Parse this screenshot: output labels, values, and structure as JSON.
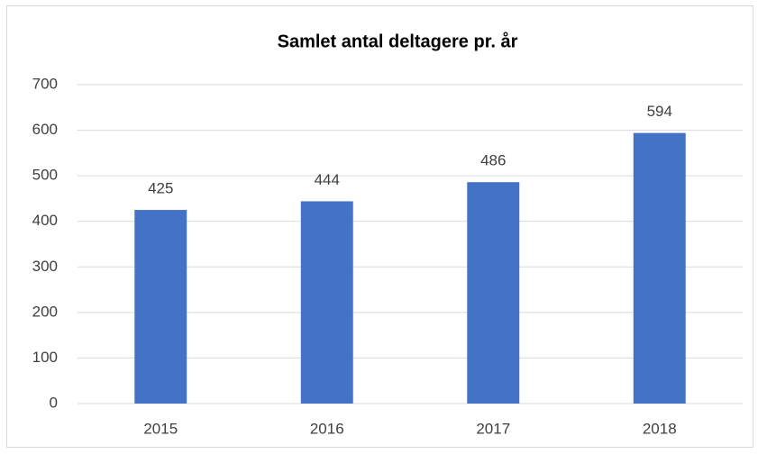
{
  "chart_data": {
    "type": "bar",
    "title": "Samlet antal deltagere pr. år",
    "categories": [
      "2015",
      "2016",
      "2017",
      "2018"
    ],
    "values": [
      425,
      444,
      486,
      594
    ],
    "color": "#4472c4",
    "ylim": [
      0,
      700
    ],
    "yticks": [
      0,
      100,
      200,
      300,
      400,
      500,
      600,
      700
    ],
    "grid": true,
    "data_labels": true
  }
}
